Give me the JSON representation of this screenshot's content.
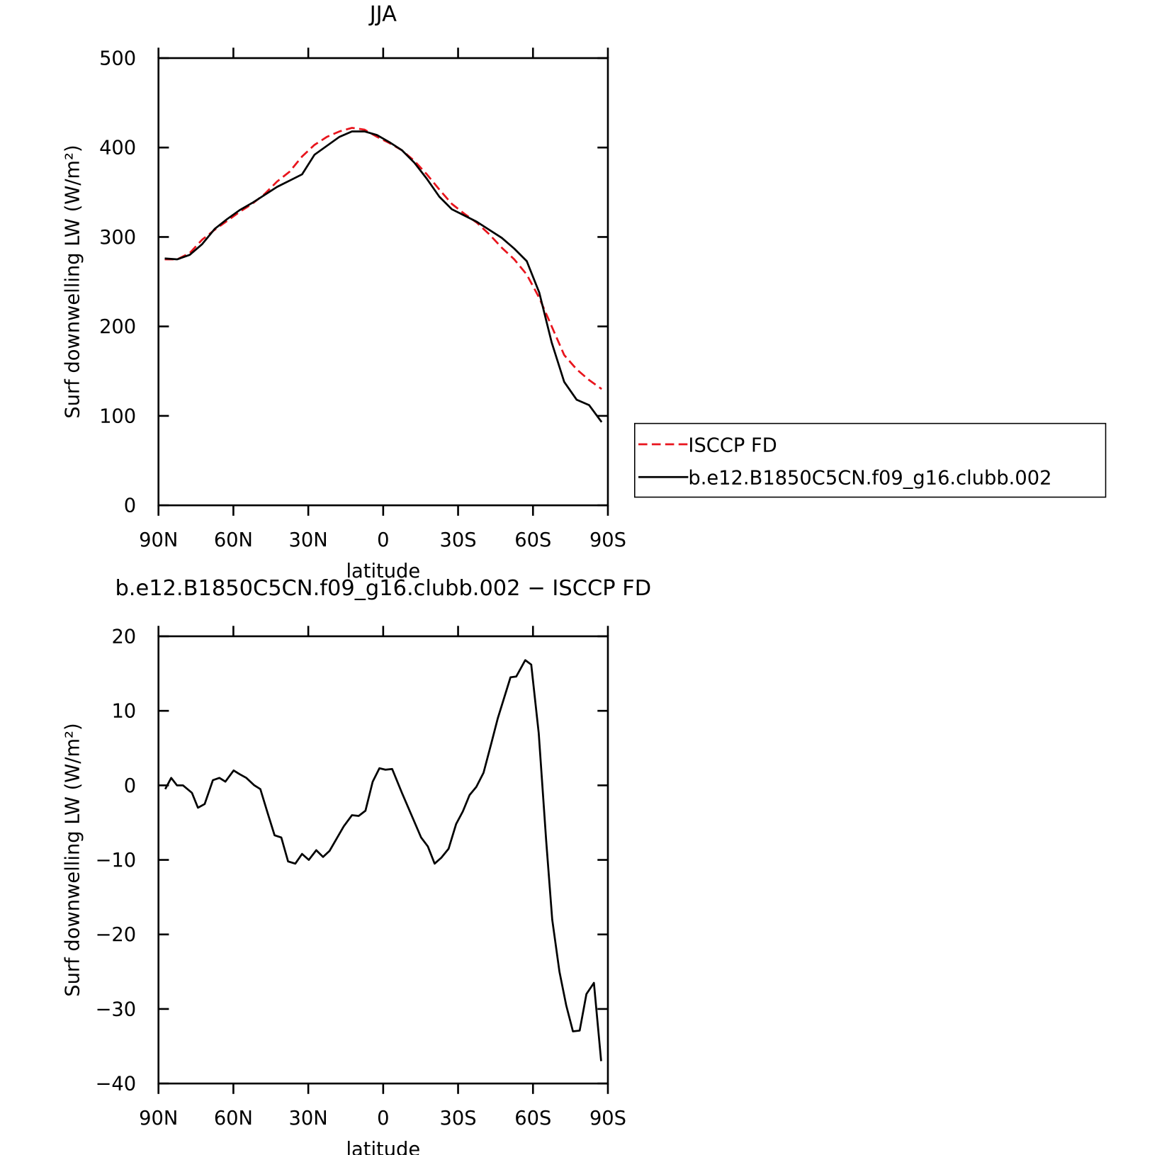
{
  "chart_data": [
    {
      "type": "line",
      "title": "JJA",
      "x_label": "latitude",
      "y_label": "Surf downwelling LW (W/m²)",
      "xlim": [
        90,
        -90
      ],
      "xticks": [
        {
          "value": 90,
          "label": "90N"
        },
        {
          "value": 60,
          "label": "60N"
        },
        {
          "value": 30,
          "label": "30N"
        },
        0,
        {
          "value": -30,
          "label": "30S"
        },
        {
          "value": -60,
          "label": "60S"
        },
        {
          "value": -90,
          "label": "90S"
        }
      ],
      "ylim": [
        0,
        500
      ],
      "yticks": [
        0,
        100,
        200,
        300,
        400,
        500
      ],
      "legend": "right",
      "x": [
        87.5,
        82.5,
        77.5,
        72.5,
        67.5,
        62.5,
        57.5,
        52.5,
        47.5,
        42.5,
        37.5,
        32.5,
        27.5,
        22.5,
        17.5,
        12.5,
        7.5,
        2.5,
        -2.5,
        -7.5,
        -12.5,
        -17.5,
        -22.5,
        -27.5,
        -32.5,
        -37.5,
        -42.5,
        -47.5,
        -52.5,
        -57.5,
        -62.5,
        -67.5,
        -72.5,
        -77.5,
        -82.5,
        -87.5
      ],
      "series": [
        {
          "name": "ISCCP FD",
          "color": "#e8141c",
          "line_style": "dashed",
          "values": [
            275,
            275,
            282,
            297,
            308,
            318,
            328,
            337,
            348,
            362,
            373,
            390,
            403,
            412,
            418,
            422,
            420,
            412,
            405,
            397,
            385,
            370,
            353,
            337,
            326,
            316,
            303,
            288,
            275,
            258,
            232,
            200,
            168,
            152,
            140,
            130
          ]
        },
        {
          "name": "b.e12.B1850C5CN.f09_g16.clubb.002",
          "color": "#000000",
          "line_style": "solid",
          "values": [
            276,
            275,
            280,
            292,
            309,
            320,
            330,
            338,
            347,
            356,
            363,
            370,
            392,
            402,
            412,
            418,
            418,
            414,
            406,
            397,
            383,
            365,
            345,
            331,
            324,
            317,
            308,
            299,
            287,
            273,
            238,
            182,
            138,
            118,
            112,
            93
          ]
        }
      ]
    },
    {
      "type": "line",
      "title": "b.e12.B1850C5CN.f09_g16.clubb.002 − ISCCP FD",
      "x_label": "latitude",
      "y_label": "Surf downwelling LW (W/m²)",
      "xlim": [
        90,
        -90
      ],
      "xticks": [
        {
          "value": 90,
          "label": "90N"
        },
        {
          "value": 60,
          "label": "60N"
        },
        {
          "value": 30,
          "label": "30N"
        },
        0,
        {
          "value": -30,
          "label": "30S"
        },
        {
          "value": -60,
          "label": "60S"
        },
        {
          "value": -90,
          "label": "90S"
        }
      ],
      "ylim": [
        -40,
        20
      ],
      "yticks": [
        {
          "value": -40,
          "label": "−40"
        },
        {
          "value": -30,
          "label": "−30"
        },
        {
          "value": -20,
          "label": "−20"
        },
        {
          "value": -10,
          "label": "−10"
        },
        0,
        10,
        20
      ],
      "x": [
        87.3,
        84.9,
        82.6,
        80.2,
        76.6,
        74.2,
        71.5,
        68.2,
        65.6,
        63.2,
        59.9,
        57.5,
        54.8,
        51.6,
        49.2,
        46.2,
        43.5,
        40.8,
        38.1,
        35.2,
        32.5,
        29.8,
        26.8,
        24.1,
        21.5,
        15.8,
        12.5,
        9.8,
        7.1,
        4.2,
        1.5,
        -0.9,
        -3.6,
        -7.5,
        -15.2,
        -17.9,
        -20.6,
        -23.3,
        -26.2,
        -29.2,
        -31.9,
        -34.6,
        -37.3,
        -40.2,
        -43.2,
        -45.9,
        -51.0,
        -53.3,
        -56.9,
        -59.3,
        -62.3,
        -65.3,
        -67.7,
        -70.6,
        -73.3,
        -76.0,
        -78.7,
        -81.4,
        -84.4,
        -87.3
      ],
      "series": [
        {
          "color": "#000000",
          "line_style": "solid",
          "values": [
            -0.5,
            1,
            0,
            0,
            -1,
            -3,
            -2.5,
            0.7,
            1,
            0.5,
            2,
            1.5,
            1,
            0,
            -0.5,
            -3.8,
            -6.7,
            -7,
            -10.2,
            -10.5,
            -9.2,
            -10,
            -8.7,
            -9.6,
            -8.8,
            -5.5,
            -4,
            -4.1,
            -3.4,
            0.5,
            2.3,
            2.1,
            2.2,
            -1,
            -7,
            -8.2,
            -10.5,
            -9.7,
            -8.5,
            -5.2,
            -3.5,
            -1.3,
            -0.2,
            1.7,
            5.5,
            9,
            14.5,
            14.6,
            16.8,
            16.2,
            7,
            -7.5,
            -18,
            -25,
            -29.5,
            -33,
            -32.9,
            -28,
            -26.5,
            -37
          ]
        }
      ]
    }
  ]
}
